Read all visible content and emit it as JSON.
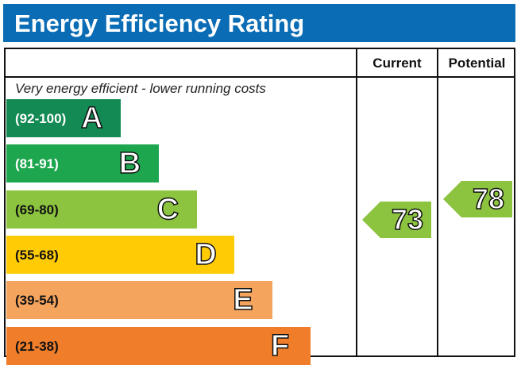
{
  "title": "Energy Efficiency Rating",
  "columns": {
    "current": "Current",
    "potential": "Potential"
  },
  "top_caption": "Very energy efficient - lower running costs",
  "chart_data": {
    "type": "bar",
    "bands": [
      {
        "letter": "A",
        "range": "(92-100)",
        "color": "#138a54",
        "text_color": "#ffffff"
      },
      {
        "letter": "B",
        "range": "(81-91)",
        "color": "#1ea64f",
        "text_color": "#ffffff"
      },
      {
        "letter": "C",
        "range": "(69-80)",
        "color": "#8cc43f",
        "text_color": "#111111"
      },
      {
        "letter": "D",
        "range": "(55-68)",
        "color": "#ffcb05",
        "text_color": "#111111"
      },
      {
        "letter": "E",
        "range": "(39-54)",
        "color": "#f5a45d",
        "text_color": "#111111"
      },
      {
        "letter": "F",
        "range": "(21-38)",
        "color": "#ef7d2a",
        "text_color": "#111111"
      }
    ],
    "current": {
      "value": 73,
      "band": "C",
      "color": "#8cc43f"
    },
    "potential": {
      "value": 78,
      "band": "C",
      "color": "#8cc43f"
    }
  }
}
